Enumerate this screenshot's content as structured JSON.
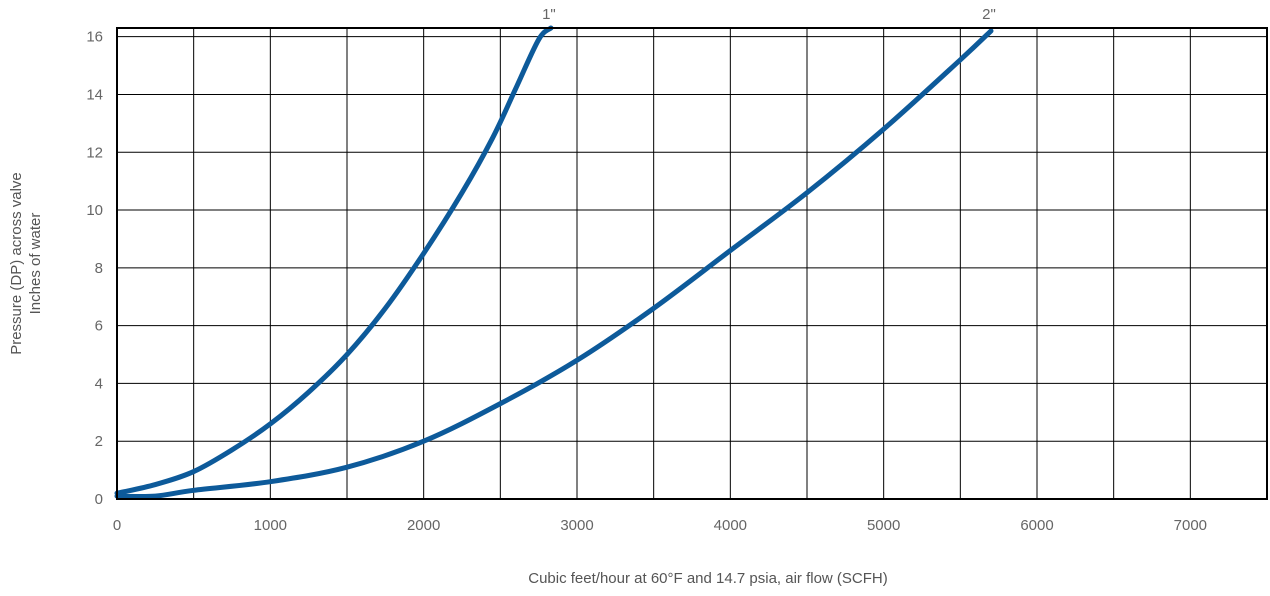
{
  "chart_data": {
    "type": "line",
    "title": "",
    "xlabel": "Cubic feet/hour at 60°F and 14.7 psia, air flow (SCFH)",
    "ylabel_line1": "Pressure (DP) across valve",
    "ylabel_line2": "Inches of water",
    "xlim": [
      0,
      7500
    ],
    "ylim": [
      0,
      16.3
    ],
    "x_ticks": [
      0,
      1000,
      2000,
      3000,
      4000,
      5000,
      6000,
      7000
    ],
    "x_tick_labels": [
      "0",
      "1000",
      "2000",
      "3000",
      "4000",
      "5000",
      "6000",
      "7000"
    ],
    "y_ticks": [
      0,
      2,
      4,
      6,
      8,
      10,
      12,
      14,
      16
    ],
    "y_tick_labels": [
      "0",
      "2",
      "4",
      "6",
      "8",
      "10",
      "12",
      "14",
      "16"
    ],
    "x_grid_step": 500,
    "y_grid_step": 2,
    "grid": true,
    "series_color": "#0d5a9a",
    "series": [
      {
        "name": "1\"",
        "x": [
          0,
          250,
          500,
          750,
          1000,
          1250,
          1500,
          1750,
          2000,
          2250,
          2450,
          2600,
          2750,
          2830
        ],
        "y": [
          0.2,
          0.5,
          0.95,
          1.7,
          2.6,
          3.7,
          5.0,
          6.6,
          8.5,
          10.6,
          12.5,
          14.2,
          15.9,
          16.3
        ]
      },
      {
        "name": "2\"",
        "x": [
          0,
          250,
          500,
          1000,
          1500,
          2000,
          2500,
          3000,
          3500,
          4000,
          4500,
          5000,
          5500,
          5700
        ],
        "y": [
          0.1,
          0.1,
          0.3,
          0.6,
          1.1,
          2.0,
          3.3,
          4.8,
          6.6,
          8.6,
          10.6,
          12.8,
          15.2,
          16.2
        ]
      }
    ]
  }
}
